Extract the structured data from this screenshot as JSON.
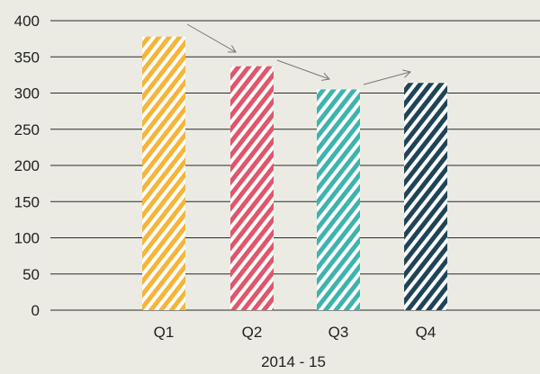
{
  "chart_data": {
    "type": "bar",
    "categories": [
      "Q1",
      "Q2",
      "Q3",
      "Q4"
    ],
    "values": [
      378,
      337,
      305,
      314
    ],
    "xlabel": "2014 - 15",
    "ylabel": "",
    "ylim": [
      0,
      400
    ],
    "yticks": [
      0,
      50,
      100,
      150,
      200,
      250,
      300,
      350,
      400
    ],
    "grid": true,
    "bar_colors": [
      "#f5b53a",
      "#e0566a",
      "#3fb3ae",
      "#1f4457"
    ],
    "fill_style": "diagonal-hatch-sketch",
    "trend_arrows": true
  },
  "colors": {
    "background": "#ebebe4",
    "gridline": "#2a2a2a",
    "arrow": "#777777",
    "text": "#1f1f1f"
  }
}
